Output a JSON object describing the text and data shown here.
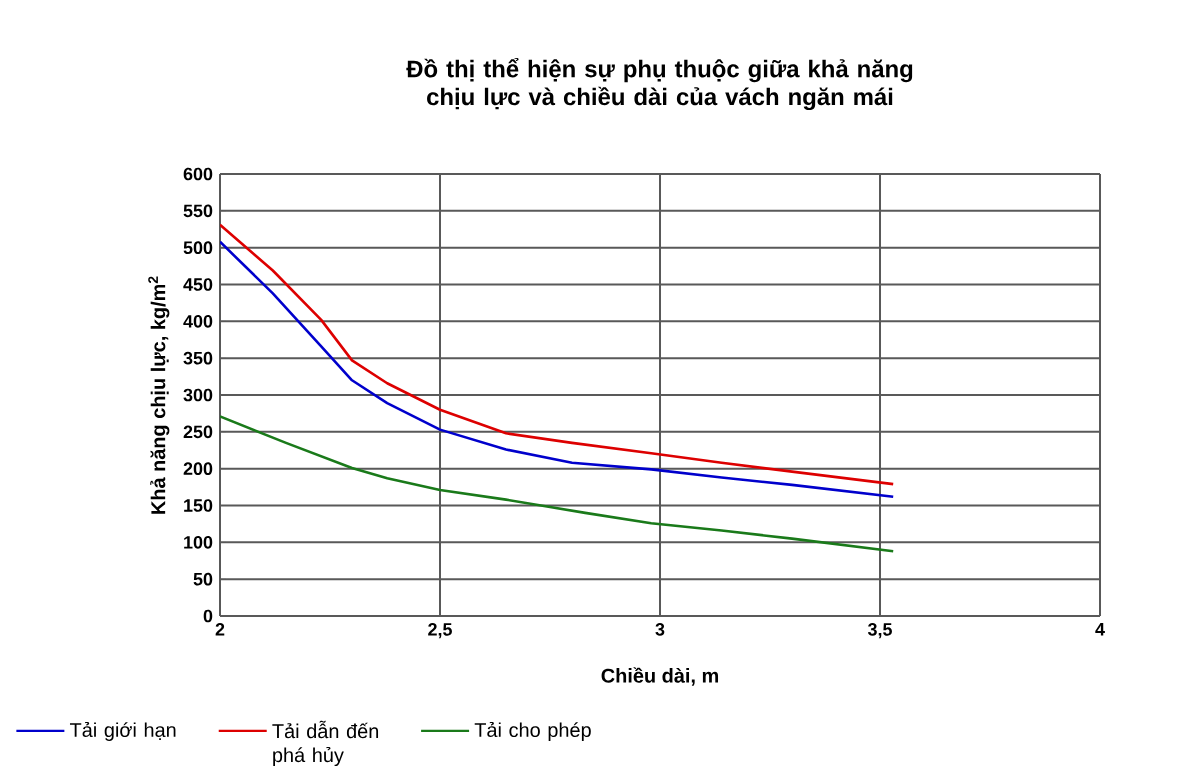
{
  "chart_data": {
    "type": "line",
    "title": "Đồ thị thể hiện sự  phụ thuộc giữa khả năng chịu lực và chiều dài của vách ngăn mái",
    "xlabel": "Chiều dài, m",
    "ylabel": "Khả năng chịu lực, kg/m$^{2}$",
    "series": [
      {
        "name": "Tải giới hạn",
        "color": "#0000cc",
        "x": [
          2,
          2.12,
          2.23,
          2.3,
          2.38,
          2.5,
          2.65,
          2.8,
          2.98,
          3.14,
          3.3,
          3.53
        ],
        "values": [
          508,
          438,
          366,
          320,
          289,
          253,
          226,
          208,
          199,
          188,
          178,
          162
        ]
      },
      {
        "name": "Tải dẫn đến phá hủy",
        "color": "#dd0000",
        "x": [
          2,
          2.12,
          2.23,
          2.3,
          2.38,
          2.5,
          2.65,
          2.8,
          2.98,
          3.14,
          3.3,
          3.53
        ],
        "values": [
          531,
          469,
          402,
          347,
          316,
          280,
          248,
          235,
          221,
          208,
          196,
          179
        ]
      },
      {
        "name": "Tải cho phép",
        "color": "#1a7a1a",
        "x": [
          2,
          2.15,
          2.3,
          2.38,
          2.5,
          2.65,
          2.83,
          2.98,
          3.14,
          3.3,
          3.53
        ],
        "values": [
          271,
          235,
          201,
          187,
          171,
          158,
          140,
          126,
          116,
          105,
          88
        ]
      }
    ],
    "xlim": [
      2,
      4
    ],
    "xticks": [
      2,
      {
        "value": 2.5,
        "label": "2,5"
      },
      3,
      {
        "value": 3.5,
        "label": "3,5"
      },
      4
    ],
    "ylim": [
      0,
      600
    ],
    "yticks": [
      0,
      50,
      100,
      150,
      200,
      250,
      300,
      350,
      400,
      450,
      500,
      550,
      600
    ],
    "grid": true,
    "legend": "bottom",
    "line_style": "solid",
    "marker": "none"
  }
}
